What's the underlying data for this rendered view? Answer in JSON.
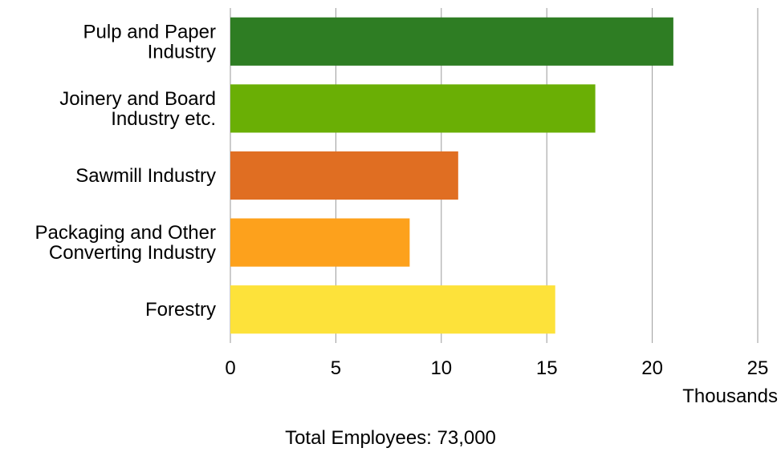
{
  "chart_data": {
    "type": "bar",
    "orientation": "horizontal",
    "categories": [
      [
        "Pulp and Paper",
        "Industry"
      ],
      [
        "Joinery and Board",
        "Industry etc."
      ],
      [
        "Sawmill Industry"
      ],
      [
        "Packaging and Other",
        "Converting Industry"
      ],
      [
        "Forestry"
      ]
    ],
    "values": [
      21.0,
      17.3,
      10.8,
      8.5,
      15.4
    ],
    "colors": [
      "#2e7d23",
      "#6aaf05",
      "#e06e22",
      "#fda11c",
      "#fde23a"
    ],
    "x_ticks": [
      "0",
      "5",
      "10",
      "15",
      "20",
      "25"
    ],
    "xlim": [
      0,
      25
    ],
    "x_unit_label": "Thousands",
    "grid": "vertical",
    "legend": "none"
  },
  "footer": {
    "total_text": "Total Employees: 73,000"
  }
}
